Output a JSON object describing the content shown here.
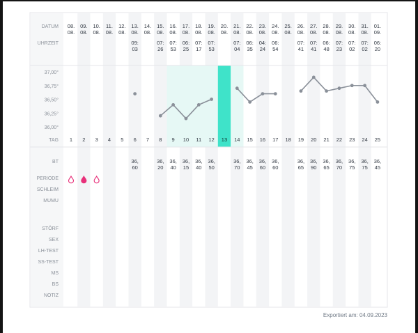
{
  "export": {
    "label": "Exportiert am:",
    "date": "04.09.2023"
  },
  "chart_data": {
    "type": "line",
    "row_labels": {
      "datum": "DATUM",
      "uhrzeit": "UHRZEIT",
      "tag": "TAG",
      "bt": "BT",
      "periode": "PERIODE",
      "schleim": "SCHLEIM",
      "mumu": "MUMU",
      "stoerf": "STÖRF",
      "sex": "SEX",
      "lh_test": "LH-TEST",
      "ss_test": "SS-TEST",
      "ms": "MS",
      "bs": "BS",
      "notiz": "NOTIZ"
    },
    "y_ticks": [
      "37,00°",
      "36,75°",
      "36,50°",
      "36,25°",
      "36,00°"
    ],
    "ylim": [
      35.95,
      37.05
    ],
    "highlight": {
      "range_start_day": 9,
      "range_end_day": 14,
      "peak_day": 13,
      "range_color": "#e6f8f5",
      "peak_color": "#3fe3c9"
    },
    "colors": {
      "line": "#8a9099",
      "period": "#e8307a",
      "label": "#8a9099",
      "text": "#333a44",
      "alt_col": "#f3f4f6"
    },
    "days": [
      {
        "tag": "1",
        "date": [
          "08.",
          "08."
        ],
        "time": [
          "",
          ""
        ],
        "bt": [
          "",
          ""
        ],
        "temp": null,
        "period": "light"
      },
      {
        "tag": "2",
        "date": [
          "09.",
          "08."
        ],
        "time": [
          "",
          ""
        ],
        "bt": [
          "",
          ""
        ],
        "temp": null,
        "period": "heavy"
      },
      {
        "tag": "3",
        "date": [
          "10.",
          "08."
        ],
        "time": [
          "",
          ""
        ],
        "bt": [
          "",
          ""
        ],
        "temp": null,
        "period": "light"
      },
      {
        "tag": "4",
        "date": [
          "11.",
          "08."
        ],
        "time": [
          "",
          ""
        ],
        "bt": [
          "",
          ""
        ],
        "temp": null,
        "period": ""
      },
      {
        "tag": "5",
        "date": [
          "12.",
          "08."
        ],
        "time": [
          "",
          ""
        ],
        "bt": [
          "",
          ""
        ],
        "temp": null,
        "period": ""
      },
      {
        "tag": "6",
        "date": [
          "13.",
          "08."
        ],
        "time": [
          "09:",
          "03"
        ],
        "bt": [
          "36,",
          "60"
        ],
        "temp": 36.6,
        "period": ""
      },
      {
        "tag": "7",
        "date": [
          "14.",
          "08."
        ],
        "time": [
          "",
          ""
        ],
        "bt": [
          "",
          ""
        ],
        "temp": null,
        "period": ""
      },
      {
        "tag": "8",
        "date": [
          "15.",
          "08."
        ],
        "time": [
          "07:",
          "26"
        ],
        "bt": [
          "36,",
          "20"
        ],
        "temp": 36.2,
        "period": ""
      },
      {
        "tag": "9",
        "date": [
          "16.",
          "08."
        ],
        "time": [
          "07:",
          "53"
        ],
        "bt": [
          "36,",
          "40"
        ],
        "temp": 36.4,
        "period": ""
      },
      {
        "tag": "10",
        "date": [
          "17.",
          "08."
        ],
        "time": [
          "06:",
          "25"
        ],
        "bt": [
          "36,",
          "15"
        ],
        "temp": 36.15,
        "period": ""
      },
      {
        "tag": "11",
        "date": [
          "18.",
          "08."
        ],
        "time": [
          "07:",
          "17"
        ],
        "bt": [
          "36,",
          "40"
        ],
        "temp": 36.4,
        "period": ""
      },
      {
        "tag": "12",
        "date": [
          "19.",
          "08."
        ],
        "time": [
          "07:",
          "53"
        ],
        "bt": [
          "36,",
          "50"
        ],
        "temp": 36.5,
        "period": ""
      },
      {
        "tag": "13",
        "date": [
          "20.",
          "08."
        ],
        "time": [
          "",
          ""
        ],
        "bt": [
          "",
          ""
        ],
        "temp": null,
        "period": ""
      },
      {
        "tag": "14",
        "date": [
          "21.",
          "08."
        ],
        "time": [
          "07:",
          "04"
        ],
        "bt": [
          "36,",
          "70"
        ],
        "temp": 36.7,
        "period": ""
      },
      {
        "tag": "15",
        "date": [
          "22.",
          "08."
        ],
        "time": [
          "06:",
          "35"
        ],
        "bt": [
          "36,",
          "45"
        ],
        "temp": 36.45,
        "period": ""
      },
      {
        "tag": "16",
        "date": [
          "23.",
          "08."
        ],
        "time": [
          "04:",
          "24"
        ],
        "bt": [
          "36,",
          "60"
        ],
        "temp": 36.6,
        "period": ""
      },
      {
        "tag": "17",
        "date": [
          "24.",
          "08."
        ],
        "time": [
          "06:",
          "54"
        ],
        "bt": [
          "36,",
          "60"
        ],
        "temp": 36.6,
        "period": ""
      },
      {
        "tag": "18",
        "date": [
          "25.",
          "08."
        ],
        "time": [
          "",
          ""
        ],
        "bt": [
          "",
          ""
        ],
        "temp": null,
        "period": ""
      },
      {
        "tag": "19",
        "date": [
          "26.",
          "08."
        ],
        "time": [
          "07:",
          "41"
        ],
        "bt": [
          "36,",
          "65"
        ],
        "temp": 36.65,
        "period": ""
      },
      {
        "tag": "20",
        "date": [
          "27.",
          "08."
        ],
        "time": [
          "07:",
          "41"
        ],
        "bt": [
          "36,",
          "90"
        ],
        "temp": 36.9,
        "period": ""
      },
      {
        "tag": "21",
        "date": [
          "28.",
          "08."
        ],
        "time": [
          "06:",
          "48"
        ],
        "bt": [
          "36,",
          "65"
        ],
        "temp": 36.65,
        "period": ""
      },
      {
        "tag": "22",
        "date": [
          "29.",
          "08."
        ],
        "time": [
          "07:",
          "23"
        ],
        "bt": [
          "36,",
          "70"
        ],
        "temp": 36.7,
        "period": ""
      },
      {
        "tag": "23",
        "date": [
          "30.",
          "08."
        ],
        "time": [
          "07:",
          "02"
        ],
        "bt": [
          "36,",
          "75"
        ],
        "temp": 36.75,
        "period": ""
      },
      {
        "tag": "24",
        "date": [
          "31.",
          "08."
        ],
        "time": [
          "07:",
          "02"
        ],
        "bt": [
          "36,",
          "75"
        ],
        "temp": 36.75,
        "period": ""
      },
      {
        "tag": "25",
        "date": [
          "01.",
          "09."
        ],
        "time": [
          "06:",
          "20"
        ],
        "bt": [
          "36,",
          "45"
        ],
        "temp": 36.45,
        "period": ""
      }
    ]
  }
}
